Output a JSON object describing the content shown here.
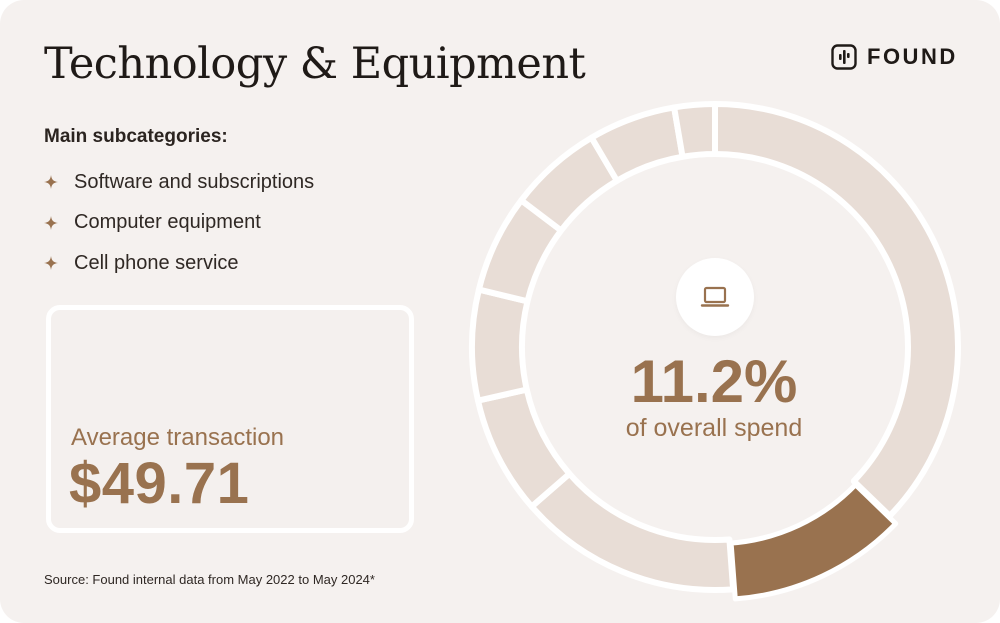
{
  "title": "Technology & Equipment",
  "brand": {
    "name": "FOUND",
    "icon": "found-logo-icon"
  },
  "subcategories": {
    "heading": "Main subcategories:",
    "items": [
      "Software and subscriptions",
      "Computer equipment",
      "Cell phone service"
    ],
    "bullet_icon": "sparkle-icon"
  },
  "average_transaction": {
    "label": "Average transaction",
    "value": "$49.71"
  },
  "center": {
    "icon": "laptop-icon",
    "percent": "11.2%",
    "caption": "of overall spend"
  },
  "source": "Source: Found internal data from May 2022 to May 2024*",
  "colors": {
    "background": "#f5f1ef",
    "segment": "#e8ddd6",
    "highlight": "#99724f",
    "text": "#1f1a17"
  },
  "chart_data": {
    "type": "pie",
    "donut": true,
    "highlight_index": 1,
    "slices": [
      {
        "value": 36.0
      },
      {
        "value": 11.2
      },
      {
        "value": 14.3
      },
      {
        "value": 7.6
      },
      {
        "value": 7.1
      },
      {
        "value": 6.3
      },
      {
        "value": 6.0
      },
      {
        "value": 5.6
      },
      {
        "value": 2.6
      }
    ]
  }
}
